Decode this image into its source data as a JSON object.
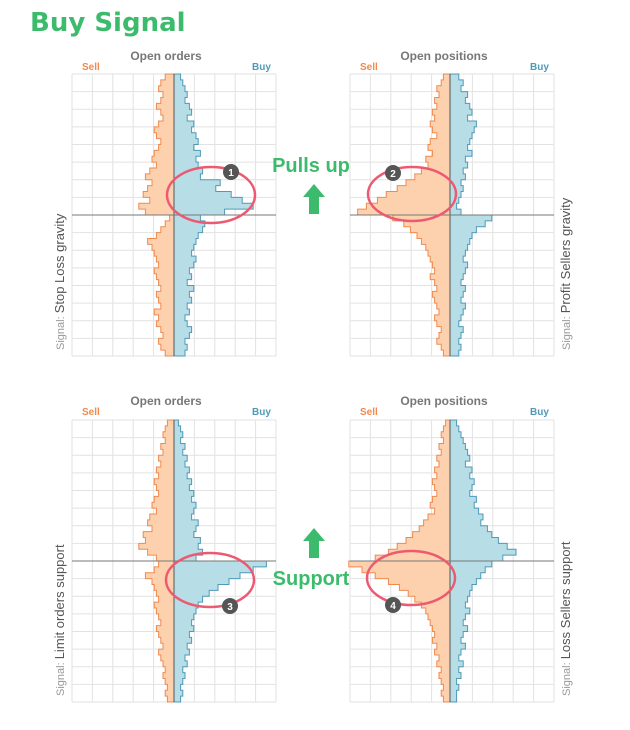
{
  "title": "Buy Signal",
  "colors": {
    "sell": "#ef8a4f",
    "buy": "#4e9ab8",
    "sell_fill": "#fdd0ae",
    "buy_fill": "#b7dde6",
    "green": "#3dbb6c",
    "highlight": "#ec5a72",
    "grid": "#e2e2e2",
    "badge": "#555555"
  },
  "annotations": {
    "pulls_up": "Pulls up",
    "support": "Support",
    "badges": [
      "1",
      "2",
      "3",
      "4"
    ],
    "arrow_icon": "green-up-arrow-icon"
  },
  "chart_data": [
    {
      "type": "histogram-butterfly",
      "title": "Open orders",
      "left_label": "Sell",
      "right_label": "Buy",
      "side_label_prefix": "Signal:",
      "side_label": "Stop Loss gravity",
      "bins_top_to_bottom": 48,
      "current_price_bin": 24,
      "sell": [
        0.4,
        0.6,
        0.7,
        0.5,
        0.6,
        0.8,
        0.6,
        0.5,
        0.7,
        0.9,
        0.8,
        0.6,
        0.7,
        0.9,
        1.0,
        0.8,
        1.1,
        1.3,
        1.0,
        1.2,
        1.4,
        1.1,
        1.6,
        1.3,
        0.2,
        0.4,
        0.6,
        0.8,
        1.2,
        1.0,
        0.9,
        0.8,
        0.7,
        0.9,
        0.8,
        0.7,
        0.6,
        0.8,
        0.7,
        0.6,
        0.9,
        0.7,
        0.8,
        0.6,
        0.5,
        0.7,
        0.6,
        0.4
      ],
      "buy": [
        0.3,
        0.4,
        0.5,
        0.6,
        0.5,
        0.7,
        0.8,
        0.6,
        0.9,
        0.8,
        1.0,
        1.1,
        0.9,
        1.2,
        1.0,
        1.1,
        1.3,
        1.2,
        2.1,
        1.9,
        2.6,
        3.1,
        3.6,
        2.3,
        1.2,
        1.4,
        1.3,
        1.1,
        1.0,
        0.9,
        0.8,
        1.0,
        0.9,
        0.7,
        0.8,
        0.6,
        0.9,
        0.7,
        0.8,
        0.6,
        0.7,
        0.5,
        0.6,
        0.8,
        0.7,
        0.5,
        0.6,
        0.5
      ]
    },
    {
      "type": "histogram-butterfly",
      "title": "Open positions",
      "left_label": "Sell",
      "right_label": "Buy",
      "side_label_prefix": "Signal:",
      "side_label": "Profit Sellers gravity",
      "bins_top_to_bottom": 48,
      "current_price_bin": 24,
      "sell": [
        0.3,
        0.4,
        0.6,
        0.5,
        0.7,
        0.6,
        0.8,
        0.7,
        0.9,
        0.8,
        0.6,
        0.9,
        1.0,
        0.8,
        1.1,
        1.0,
        1.3,
        1.6,
        2.0,
        2.4,
        2.9,
        3.3,
        3.8,
        4.2,
        2.6,
        2.1,
        1.8,
        1.5,
        1.3,
        1.1,
        1.0,
        0.9,
        0.8,
        0.7,
        0.9,
        0.7,
        0.6,
        0.8,
        0.7,
        0.6,
        0.5,
        0.7,
        0.6,
        0.4,
        0.5,
        0.6,
        0.4,
        0.3
      ],
      "buy": [
        0.4,
        0.6,
        0.5,
        0.8,
        0.7,
        0.9,
        1.0,
        0.8,
        1.2,
        1.1,
        1.0,
        0.9,
        0.8,
        1.0,
        0.7,
        0.8,
        0.6,
        0.7,
        0.5,
        0.6,
        0.5,
        0.4,
        0.3,
        0.5,
        1.9,
        1.6,
        1.2,
        1.0,
        0.9,
        0.8,
        0.7,
        0.6,
        0.8,
        0.7,
        0.6,
        0.5,
        0.7,
        0.6,
        0.5,
        0.7,
        0.6,
        0.5,
        0.4,
        0.6,
        0.5,
        0.4,
        0.5,
        0.4
      ]
    },
    {
      "type": "histogram-butterfly",
      "title": "Open orders",
      "left_label": "Sell",
      "right_label": "Buy",
      "side_label_prefix": "Signal:",
      "side_label": "Limit orders support",
      "bins_top_to_bottom": 48,
      "current_price_bin": 24,
      "sell": [
        0.3,
        0.4,
        0.5,
        0.4,
        0.6,
        0.5,
        0.7,
        0.6,
        0.8,
        0.7,
        0.9,
        0.8,
        0.7,
        0.9,
        1.0,
        0.8,
        1.1,
        1.2,
        1.0,
        1.4,
        1.3,
        1.6,
        1.2,
        0.8,
        0.5,
        0.6,
        0.4,
        0.3,
        0.5,
        0.6,
        0.7,
        0.8,
        0.9,
        0.7,
        0.8,
        0.6,
        0.7,
        0.8,
        0.9,
        0.7,
        0.6,
        0.8,
        0.7,
        0.6,
        0.5,
        0.6,
        0.4,
        0.3
      ],
      "buy": [
        0.2,
        0.3,
        0.4,
        0.3,
        0.5,
        0.4,
        0.6,
        0.5,
        0.7,
        0.6,
        0.8,
        0.7,
        0.9,
        0.8,
        1.0,
        0.9,
        0.8,
        1.1,
        1.0,
        0.9,
        1.2,
        1.1,
        1.3,
        1.0,
        0.9,
        1.2,
        1.5,
        0.8,
        0.6,
        0.5,
        0.4,
        0.5,
        0.6,
        0.4,
        0.5,
        0.3,
        0.4,
        0.5,
        0.3,
        0.4,
        0.5,
        0.3,
        0.4,
        0.3,
        0.2,
        0.3,
        0.2,
        0.2
      ],
      "sell_below": [
        0.7,
        0.9,
        1.3,
        1.0,
        0.9,
        0.8,
        0.7,
        0.9,
        0.8,
        0.7,
        0.6,
        0.8,
        0.7,
        0.6,
        0.5,
        0.7,
        0.6,
        0.5,
        0.4,
        0.5,
        0.4,
        0.3,
        0.4,
        0.3
      ],
      "buy_below": [
        4.2,
        3.6,
        3.0,
        2.5,
        2.0,
        1.6,
        1.3,
        1.1,
        1.0,
        0.9,
        0.8,
        0.9,
        0.7,
        0.8,
        0.6,
        0.7,
        0.5,
        0.6,
        0.4,
        0.5,
        0.4,
        0.3,
        0.4,
        0.3
      ]
    },
    {
      "type": "histogram-butterfly",
      "title": "Open positions",
      "left_label": "Sell",
      "right_label": "Buy",
      "side_label_prefix": "Signal:",
      "side_label": "Loss Sellers support",
      "bins_top_to_bottom": 48,
      "current_price_bin": 24,
      "sell": [
        0.2,
        0.3,
        0.4,
        0.3,
        0.5,
        0.4,
        0.6,
        0.5,
        0.7,
        0.6,
        0.8,
        0.7,
        0.6,
        0.8,
        0.9,
        0.7,
        1.0,
        1.2,
        1.4,
        1.7,
        2.0,
        2.4,
        2.8,
        3.4,
        4.2,
        3.6,
        3.0,
        2.6,
        2.2,
        1.9,
        1.6,
        1.4,
        1.2,
        1.0,
        0.9,
        0.8,
        0.7,
        0.8,
        0.6,
        0.7,
        0.5,
        0.6,
        0.5,
        0.4,
        0.5,
        0.4,
        0.3,
        0.3
      ],
      "buy": [
        0.3,
        0.4,
        0.5,
        0.6,
        0.7,
        0.8,
        0.9,
        0.7,
        1.0,
        0.9,
        1.1,
        1.0,
        0.9,
        1.2,
        1.1,
        1.3,
        1.5,
        1.4,
        1.7,
        1.9,
        2.2,
        2.6,
        3.0,
        2.4,
        1.5,
        1.2,
        1.0,
        0.8,
        0.7,
        0.6,
        0.7,
        0.5,
        0.6,
        0.5,
        0.4,
        0.5,
        0.6,
        0.4,
        0.5,
        0.4,
        0.3,
        0.4,
        0.3,
        0.4,
        0.3,
        0.3,
        0.2,
        0.2
      ],
      "sell_below": [
        4.6,
        4.0,
        3.4,
        2.8,
        2.3,
        1.9,
        1.6,
        1.3,
        1.1,
        1.0,
        0.9,
        0.8,
        0.7,
        0.8,
        0.6,
        0.7,
        0.5,
        0.6,
        0.4,
        0.5,
        0.4,
        0.3,
        0.4,
        0.3
      ],
      "buy_below": [
        1.9,
        1.6,
        1.4,
        1.2,
        1.0,
        0.9,
        0.8,
        0.7,
        0.9,
        0.7,
        0.6,
        0.8,
        0.6,
        0.5,
        0.7,
        0.5,
        0.4,
        0.6,
        0.4,
        0.5,
        0.3,
        0.4,
        0.3,
        0.3
      ]
    }
  ]
}
